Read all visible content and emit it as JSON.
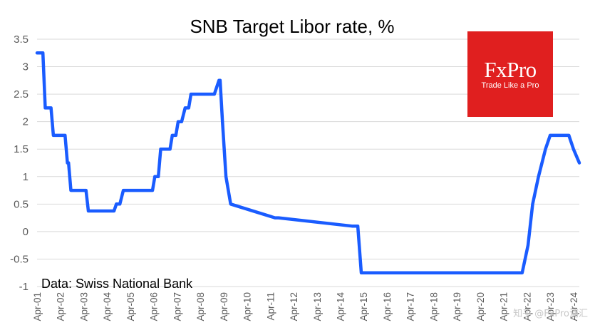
{
  "chart_data": {
    "type": "line",
    "title": "SNB Target Libor rate, %",
    "source": "Data: Swiss National Bank",
    "ylim": [
      -1,
      3.5
    ],
    "yticks": [
      -1,
      -0.5,
      0,
      0.5,
      1,
      1.5,
      2,
      2.5,
      3,
      3.5
    ],
    "ytick_labels": [
      "-1",
      "-0.5",
      "0",
      "0.5",
      "1",
      "1.5",
      "2",
      "2.5",
      "3",
      "3.5"
    ],
    "x_categories": [
      "Apr-01",
      "Apr-02",
      "Apr-03",
      "Apr-04",
      "Apr-05",
      "Apr-06",
      "Apr-07",
      "Apr-08",
      "Apr-09",
      "Apr-10",
      "Apr-11",
      "Apr-12",
      "Apr-13",
      "Apr-14",
      "Apr-15",
      "Apr-16",
      "Apr-17",
      "Apr-18",
      "Apr-19",
      "Apr-20",
      "Apr-21",
      "Apr-22",
      "Apr-23",
      "Apr-24"
    ],
    "grid": true,
    "line_color": "#1a5cff",
    "series": [
      {
        "x": [
          2001.0,
          2001.25,
          2001.35,
          2001.6,
          2001.7,
          2002.2,
          2002.3,
          2002.35,
          2002.45,
          2003.1,
          2003.2,
          2004.3,
          2004.4,
          2004.55,
          2004.7,
          2005.95,
          2006.05,
          2006.2,
          2006.3,
          2006.7,
          2006.8,
          2006.95,
          2007.05,
          2007.2,
          2007.35,
          2007.5,
          2007.6,
          2008.6,
          2008.8,
          2008.85,
          2008.95,
          2009.1,
          2009.3,
          2011.2,
          2011.35,
          2014.5,
          2014.7,
          2014.75,
          2014.9,
          2021.8,
          2022.05,
          2022.25,
          2022.5,
          2022.8,
          2023.0,
          2023.3,
          2023.5,
          2023.8,
          2024.0,
          2024.25
        ],
        "y": [
          3.25,
          3.25,
          2.25,
          2.25,
          1.75,
          1.75,
          1.25,
          1.25,
          0.75,
          0.75,
          0.375,
          0.375,
          0.5,
          0.5,
          0.75,
          0.75,
          1.0,
          1.0,
          1.5,
          1.5,
          1.75,
          1.75,
          2.0,
          2.0,
          2.25,
          2.25,
          2.5,
          2.5,
          2.75,
          2.75,
          2.0,
          1.0,
          0.5,
          0.25,
          0.25,
          0.1,
          0.1,
          0.1,
          -0.75,
          -0.75,
          -0.25,
          0.5,
          1.0,
          1.5,
          1.75,
          1.75,
          1.75,
          1.75,
          1.5,
          1.25
        ]
      }
    ]
  },
  "logo": {
    "name": "FxPro",
    "tagline": "Trade Like a Pro",
    "color": "#e01f1f"
  },
  "watermark": "知乎 @FxPro浦汇"
}
